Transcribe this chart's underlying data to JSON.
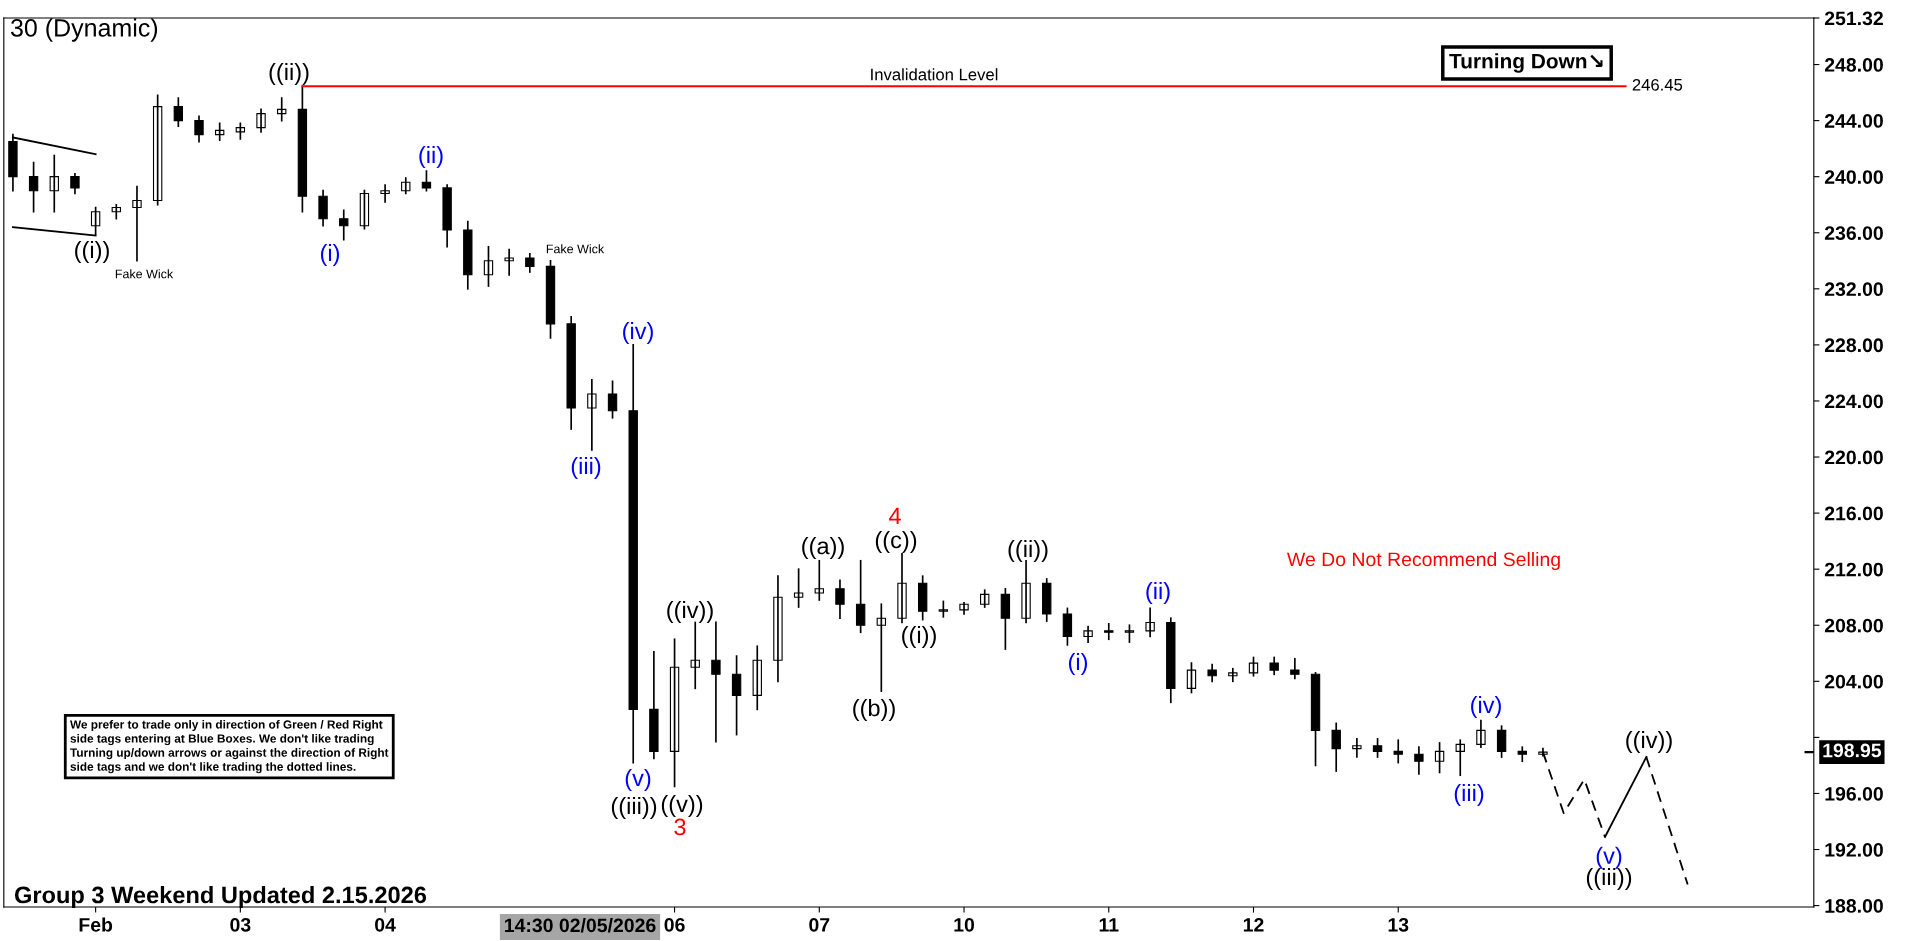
{
  "chart_data": {
    "type": "candlestick",
    "title": "30 (Dynamic)",
    "categories": [
      null,
      null,
      null,
      null,
      "Feb",
      null,
      null,
      null,
      null,
      null,
      null,
      "03",
      null,
      null,
      null,
      null,
      null,
      null,
      "04",
      null,
      null,
      null,
      null,
      null,
      null,
      null,
      null,
      null,
      null,
      null,
      null,
      null,
      "06",
      null,
      null,
      null,
      null,
      null,
      null,
      "07",
      null,
      null,
      null,
      null,
      null,
      null,
      "10",
      null,
      null,
      null,
      null,
      null,
      null,
      "11",
      null,
      null,
      null,
      null,
      null,
      null,
      "12",
      null,
      null,
      null,
      null,
      null,
      null,
      "13",
      null,
      null,
      null,
      null,
      null,
      null,
      null,
      null,
      null,
      null,
      null,
      null,
      null,
      null,
      null,
      null,
      null,
      null,
      null,
      null
    ],
    "ohlc": [
      [
        242.5,
        243,
        239,
        240
      ],
      [
        240,
        241,
        237.5,
        239
      ],
      [
        239,
        241.5,
        237.5,
        240
      ],
      [
        240,
        240.2,
        238.8,
        239.2
      ],
      [
        236.5,
        237.8,
        235.9,
        237.5
      ],
      [
        237.5,
        238,
        237,
        237.8
      ],
      [
        237.8,
        239.3,
        234,
        238.3
      ],
      [
        238.3,
        245.8,
        238,
        245
      ],
      [
        245,
        245.6,
        243.6,
        244
      ],
      [
        244,
        244.3,
        242.5,
        243
      ],
      [
        243,
        243.8,
        242.6,
        243.3
      ],
      [
        243.2,
        243.8,
        242.7,
        243.5
      ],
      [
        243.5,
        244.8,
        243.2,
        244.5
      ],
      [
        244.5,
        245.6,
        244,
        244.8
      ],
      [
        244.8,
        246.45,
        237.5,
        238.6
      ],
      [
        238.6,
        239,
        236.5,
        237
      ],
      [
        237,
        237.6,
        235.5,
        236.5
      ],
      [
        236.5,
        239,
        236.3,
        238.8
      ],
      [
        238.8,
        239.4,
        238.2,
        239
      ],
      [
        239,
        239.9,
        238.8,
        239.6
      ],
      [
        239.6,
        240.4,
        239,
        239.2
      ],
      [
        239.2,
        239.4,
        235,
        236.2
      ],
      [
        236.2,
        236.8,
        232,
        233
      ],
      [
        233,
        235,
        232.2,
        234
      ],
      [
        234,
        234.8,
        233,
        234.2
      ],
      [
        234.2,
        234.5,
        233.2,
        233.6
      ],
      [
        233.6,
        234,
        228.5,
        229.5
      ],
      [
        229.5,
        230,
        222,
        223.5
      ],
      [
        223.5,
        225.5,
        220.5,
        224.5
      ],
      [
        224.5,
        225.4,
        222.8,
        223.3
      ],
      [
        223.3,
        228,
        198.2,
        202
      ],
      [
        202,
        206.1,
        198.5,
        199
      ],
      [
        199,
        207,
        196.5,
        205
      ],
      [
        205,
        208.2,
        203.5,
        205.5
      ],
      [
        205.5,
        208.2,
        199.7,
        204.5
      ],
      [
        204.5,
        205.8,
        200.2,
        203
      ],
      [
        203,
        206.5,
        202,
        205.5
      ],
      [
        205.5,
        211.5,
        204,
        210
      ],
      [
        210,
        212,
        209.3,
        210.3
      ],
      [
        210.3,
        212.6,
        209.8,
        210.6
      ],
      [
        210.6,
        211.2,
        208.5,
        209.5
      ],
      [
        209.5,
        212.6,
        207.5,
        208
      ],
      [
        208,
        209.5,
        203.3,
        208.5
      ],
      [
        208.5,
        213.1,
        208.2,
        211
      ],
      [
        211,
        211.5,
        208.4,
        209
      ],
      [
        209,
        209.7,
        208.6,
        209.1
      ],
      [
        209.1,
        209.6,
        208.8,
        209.5
      ],
      [
        209.5,
        210.5,
        209.3,
        210.2
      ],
      [
        210.2,
        210.6,
        206.3,
        208.5
      ],
      [
        208.5,
        212.6,
        208.2,
        211
      ],
      [
        211,
        211.3,
        208.3,
        208.8
      ],
      [
        208.8,
        209.2,
        206.6,
        207.2
      ],
      [
        207.2,
        207.9,
        206.8,
        207.6
      ],
      [
        207.6,
        208.1,
        207,
        207.5
      ],
      [
        207.5,
        208,
        206.8,
        207.6
      ],
      [
        207.6,
        209.2,
        207.2,
        208.2
      ],
      [
        208.2,
        208.5,
        202.5,
        203.5
      ],
      [
        203.5,
        205.3,
        203.2,
        204.8
      ],
      [
        204.8,
        205.2,
        204,
        204.4
      ],
      [
        204.4,
        204.9,
        204,
        204.6
      ],
      [
        204.6,
        205.7,
        204.4,
        205.3
      ],
      [
        205.3,
        205.7,
        204.5,
        204.8
      ],
      [
        204.8,
        205.6,
        204.2,
        204.5
      ],
      [
        204.5,
        204.6,
        198,
        200.5
      ],
      [
        200.5,
        201,
        197.6,
        199.2
      ],
      [
        199.2,
        199.9,
        198.6,
        199.4
      ],
      [
        199.4,
        199.9,
        198.6,
        199
      ],
      [
        199,
        199.8,
        198.2,
        198.8
      ],
      [
        198.8,
        199.3,
        197.4,
        198.3
      ],
      [
        198.3,
        199.6,
        197.5,
        199
      ],
      [
        199,
        199.8,
        197.3,
        199.5
      ],
      [
        199.5,
        201.2,
        199.3,
        200.5
      ],
      [
        200.5,
        200.8,
        198.6,
        199
      ],
      [
        199,
        199.3,
        198.3,
        198.8
      ],
      [
        198.8,
        199.2,
        198.7,
        198.95
      ],
      null,
      null,
      null,
      null,
      null,
      null,
      null,
      null,
      null,
      null,
      null,
      null,
      null
    ],
    "color": "#000000",
    "series": [
      {
        "type": "line",
        "values": [
          242.8,
          null,
          null,
          null,
          241.6,
          null,
          null,
          null,
          null,
          null,
          null,
          null,
          null,
          null,
          null,
          null,
          null,
          null,
          null,
          null,
          null,
          null,
          null,
          null,
          null,
          null,
          null,
          null,
          null,
          null,
          null,
          null,
          null,
          null,
          null,
          null,
          null,
          null,
          null,
          null,
          null,
          null,
          null,
          null,
          null,
          null,
          null,
          null,
          null,
          null,
          null,
          null,
          null,
          null,
          null,
          null,
          null,
          null,
          null,
          null,
          null,
          null,
          null,
          null,
          null,
          null,
          null,
          null,
          null,
          null,
          null,
          null,
          null,
          null,
          null,
          null,
          null,
          null,
          null,
          null,
          null,
          null,
          null,
          null,
          null,
          null,
          null,
          null
        ],
        "color": "#000000",
        "line_style": "solid"
      },
      {
        "type": "line",
        "values": [
          236.4,
          null,
          null,
          null,
          235.8,
          null,
          null,
          null,
          null,
          null,
          null,
          null,
          null,
          null,
          null,
          null,
          null,
          null,
          null,
          null,
          null,
          null,
          null,
          null,
          null,
          null,
          null,
          null,
          null,
          null,
          null,
          null,
          null,
          null,
          null,
          null,
          null,
          null,
          null,
          null,
          null,
          null,
          null,
          null,
          null,
          null,
          null,
          null,
          null,
          null,
          null,
          null,
          null,
          null,
          null,
          null,
          null,
          null,
          null,
          null,
          null,
          null,
          null,
          null,
          null,
          null,
          null,
          null,
          null,
          null,
          null,
          null,
          null,
          null,
          null,
          null,
          null,
          null,
          null,
          null,
          null,
          null,
          null,
          null,
          null,
          null,
          null,
          null
        ],
        "color": "#000000",
        "line_style": "solid"
      },
      {
        "type": "line",
        "values": [
          null,
          null,
          null,
          null,
          null,
          null,
          null,
          null,
          null,
          null,
          null,
          null,
          null,
          null,
          246.45,
          null,
          null,
          null,
          null,
          null,
          null,
          null,
          null,
          null,
          null,
          null,
          null,
          null,
          null,
          null,
          null,
          null,
          null,
          null,
          null,
          null,
          null,
          null,
          null,
          null,
          null,
          null,
          null,
          null,
          null,
          null,
          null,
          null,
          null,
          null,
          null,
          null,
          null,
          null,
          null,
          null,
          null,
          null,
          null,
          null,
          null,
          null,
          null,
          null,
          null,
          null,
          null,
          null,
          null,
          null,
          null,
          null,
          null,
          null,
          null,
          null,
          null,
          null,
          246.45,
          null,
          null,
          null,
          null,
          null,
          null,
          null,
          null,
          null
        ],
        "color": "#ff0000",
        "line_style": "solid",
        "value_labels": [
          null,
          null,
          null,
          null,
          null,
          null,
          null,
          null,
          null,
          null,
          null,
          null,
          null,
          null,
          null,
          null,
          null,
          null,
          null,
          null,
          null,
          null,
          null,
          null,
          null,
          null,
          null,
          null,
          null,
          null,
          null,
          null,
          null,
          null,
          null,
          null,
          null,
          null,
          null,
          null,
          null,
          null,
          null,
          null,
          null,
          null,
          null,
          null,
          null,
          null,
          null,
          null,
          null,
          null,
          null,
          null,
          null,
          null,
          null,
          null,
          null,
          null,
          null,
          null,
          null,
          null,
          null,
          null,
          null,
          null,
          null,
          null,
          null,
          null,
          null,
          null,
          null,
          null,
          "246.45",
          null,
          null,
          null,
          null,
          null,
          null,
          null,
          null,
          null
        ]
      },
      {
        "type": "line",
        "values": [
          null,
          null,
          null,
          null,
          null,
          null,
          null,
          null,
          null,
          null,
          null,
          null,
          null,
          null,
          null,
          null,
          null,
          null,
          null,
          null,
          null,
          null,
          null,
          null,
          null,
          null,
          null,
          null,
          null,
          null,
          null,
          null,
          null,
          null,
          null,
          null,
          null,
          null,
          null,
          null,
          null,
          null,
          null,
          null,
          null,
          null,
          null,
          null,
          null,
          null,
          null,
          null,
          null,
          null,
          null,
          null,
          null,
          null,
          null,
          null,
          null,
          null,
          null,
          null,
          null,
          null,
          null,
          null,
          null,
          null,
          null,
          null,
          null,
          null,
          198.95,
          194.6,
          197.0,
          192.9,
          null,
          null,
          null,
          null,
          null,
          null,
          null,
          null,
          null,
          null
        ],
        "color": "#000000",
        "line_style": "dashed"
      },
      {
        "type": "line",
        "values": [
          null,
          null,
          null,
          null,
          null,
          null,
          null,
          null,
          null,
          null,
          null,
          null,
          null,
          null,
          null,
          null,
          null,
          null,
          null,
          null,
          null,
          null,
          null,
          null,
          null,
          null,
          null,
          null,
          null,
          null,
          null,
          null,
          null,
          null,
          null,
          null,
          null,
          null,
          null,
          null,
          null,
          null,
          null,
          null,
          null,
          null,
          null,
          null,
          null,
          null,
          null,
          null,
          null,
          null,
          null,
          null,
          null,
          null,
          null,
          null,
          null,
          null,
          null,
          null,
          null,
          null,
          null,
          null,
          null,
          null,
          null,
          null,
          null,
          null,
          null,
          null,
          null,
          192.9,
          null,
          198.6,
          null,
          null,
          null,
          null,
          null,
          null,
          null,
          null
        ],
        "color": "#000000",
        "line_style": "solid"
      },
      {
        "type": "line",
        "values": [
          null,
          null,
          null,
          null,
          null,
          null,
          null,
          null,
          null,
          null,
          null,
          null,
          null,
          null,
          null,
          null,
          null,
          null,
          null,
          null,
          null,
          null,
          null,
          null,
          null,
          null,
          null,
          null,
          null,
          null,
          null,
          null,
          null,
          null,
          null,
          null,
          null,
          null,
          null,
          null,
          null,
          null,
          null,
          null,
          null,
          null,
          null,
          null,
          null,
          null,
          null,
          null,
          null,
          null,
          null,
          null,
          null,
          null,
          null,
          null,
          null,
          null,
          null,
          null,
          null,
          null,
          null,
          null,
          null,
          null,
          null,
          null,
          null,
          null,
          null,
          null,
          null,
          null,
          null,
          198.6,
          null,
          189.5,
          null,
          null,
          null,
          null,
          null,
          null
        ],
        "color": "#000000",
        "line_style": "dashed"
      }
    ],
    "ylim": [
      187.9,
      251.32
    ],
    "yticks": [
      {
        "value": 188,
        "label": "188.00"
      },
      {
        "value": 192,
        "label": "192.00"
      },
      {
        "value": 196,
        "label": "196.00"
      },
      {
        "value": 200,
        "label": null
      },
      {
        "value": 204,
        "label": "204.00"
      },
      {
        "value": 208,
        "label": "208.00"
      },
      {
        "value": 212,
        "label": "212.00"
      },
      {
        "value": 216,
        "label": "216.00"
      },
      {
        "value": 220,
        "label": "220.00"
      },
      {
        "value": 224,
        "label": "224.00"
      },
      {
        "value": 228,
        "label": "228.00"
      },
      {
        "value": 232,
        "label": "232.00"
      },
      {
        "value": 236,
        "label": "236.00"
      },
      {
        "value": 240,
        "label": "240.00"
      },
      {
        "value": 244,
        "label": "244.00"
      },
      {
        "value": 248,
        "label": "248.00"
      },
      {
        "value": 251.32,
        "label": "251.32"
      }
    ],
    "ref_lines": [
      {
        "axis": "y",
        "value": 198.95,
        "label": "198.95",
        "color": "#000000"
      }
    ],
    "grid": false,
    "legend": false,
    "annotations": [
      "Invalidation Level",
      "Turning Down↘",
      "We Do Not Recommend Selling",
      "We prefer to trade only in direction of Green / Red Right\nside tags entering at Blue Boxes. We don't like trading\nTurning up/down arrows or against the direction of Right\nside tags and we don't like trading the dotted lines.",
      "Group 3 Weekend Updated 2.15.2026",
      "14:30 02/05/2026",
      "((i))",
      "Fake Wick",
      "((ii))",
      "(i)",
      "(ii)",
      "Fake Wick",
      "(iii)",
      "(iv)",
      "(v)",
      "((iii))",
      "((iv))",
      "((v))",
      "3",
      "((a))",
      "4",
      "((c))",
      "((b))",
      "((i))",
      "((ii))",
      "(i)",
      "(ii)",
      "(iii)",
      "(iv)",
      {
        "text": "(v)",
        "y": 192.9
      },
      "((iii))",
      "((iv))"
    ]
  }
}
